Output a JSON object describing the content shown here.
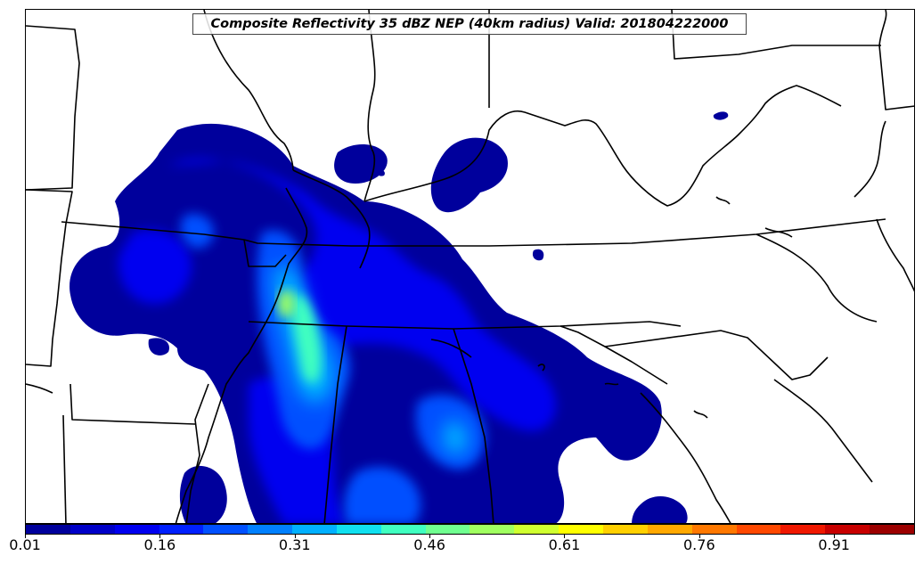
{
  "title": "Composite Reflectivity 35 dBZ NEP (40km radius) Valid: 201804222000",
  "colorbar": {
    "min": 0.01,
    "max": 1.0,
    "colors": [
      "#00009c",
      "#0000c8",
      "#0000f0",
      "#0020ff",
      "#0050ff",
      "#0080ff",
      "#00b0ff",
      "#10e0ef",
      "#40ffc0",
      "#70ff90",
      "#a0ff60",
      "#d0ff30",
      "#ffff00",
      "#ffd000",
      "#ffa800",
      "#ff7800",
      "#ff4800",
      "#f01800",
      "#c80000",
      "#9c0000"
    ],
    "tick_labels": [
      "0.01",
      "0.16",
      "0.31",
      "0.46",
      "0.61",
      "0.76",
      "0.91"
    ]
  }
}
